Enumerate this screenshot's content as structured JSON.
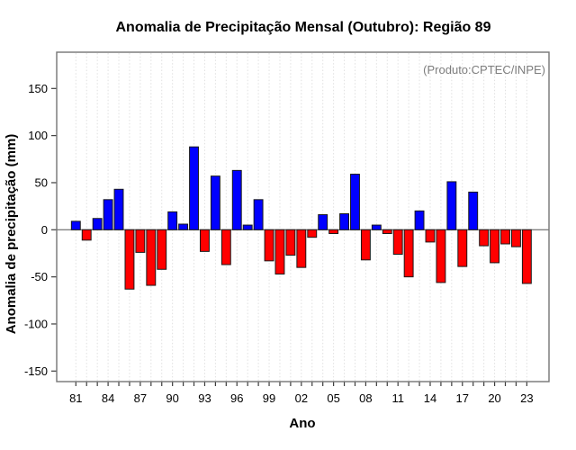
{
  "chart_data": {
    "type": "bar",
    "title": "Anomalia de Precipitação Mensal (Outubro): Região 89",
    "xlabel": "Ano",
    "ylabel": "Anomalia de precipitação (mm)",
    "annotation": "(Produto:CPTEC/INPE)",
    "annotation_color": "#7d7d7d",
    "years": [
      1981,
      1982,
      1983,
      1984,
      1985,
      1986,
      1987,
      1988,
      1989,
      1990,
      1991,
      1992,
      1993,
      1994,
      1995,
      1996,
      1997,
      1998,
      1999,
      2000,
      2001,
      2002,
      2003,
      2004,
      2005,
      2006,
      2007,
      2008,
      2009,
      2010,
      2011,
      2012,
      2013,
      2014,
      2015,
      2016,
      2017,
      2018,
      2019,
      2020,
      2021,
      2022,
      2023
    ],
    "values": [
      9,
      -11,
      12,
      32,
      43,
      -63,
      -24,
      -59,
      -42,
      19,
      6,
      88,
      -23,
      57,
      -37,
      63,
      5,
      32,
      -33,
      -47,
      -27,
      -40,
      -8,
      16,
      -4,
      17,
      59,
      -32,
      5,
      -4,
      -26,
      -50,
      20,
      -13,
      -56,
      51,
      -39,
      40,
      -17,
      -35,
      -15,
      -18,
      -57
    ],
    "x_tick_labels": [
      "81",
      "84",
      "87",
      "90",
      "93",
      "96",
      "99",
      "02",
      "05",
      "08",
      "11",
      "14",
      "17",
      "20",
      "23"
    ],
    "x_tick_every": 3,
    "y_ticks": [
      -150,
      -100,
      -50,
      0,
      50,
      100,
      150
    ],
    "ylim": [
      -162,
      188
    ],
    "grid": "vertical-dashed",
    "legend": "none",
    "positive_color": "#0000ff",
    "negative_color": "#ff0000",
    "bar_border_color": "#1a1a1a",
    "zero_line_color": "#808080",
    "grid_color": "#e0e0e0",
    "box_color": "#757575",
    "tick_color": "#3c3c3c"
  }
}
